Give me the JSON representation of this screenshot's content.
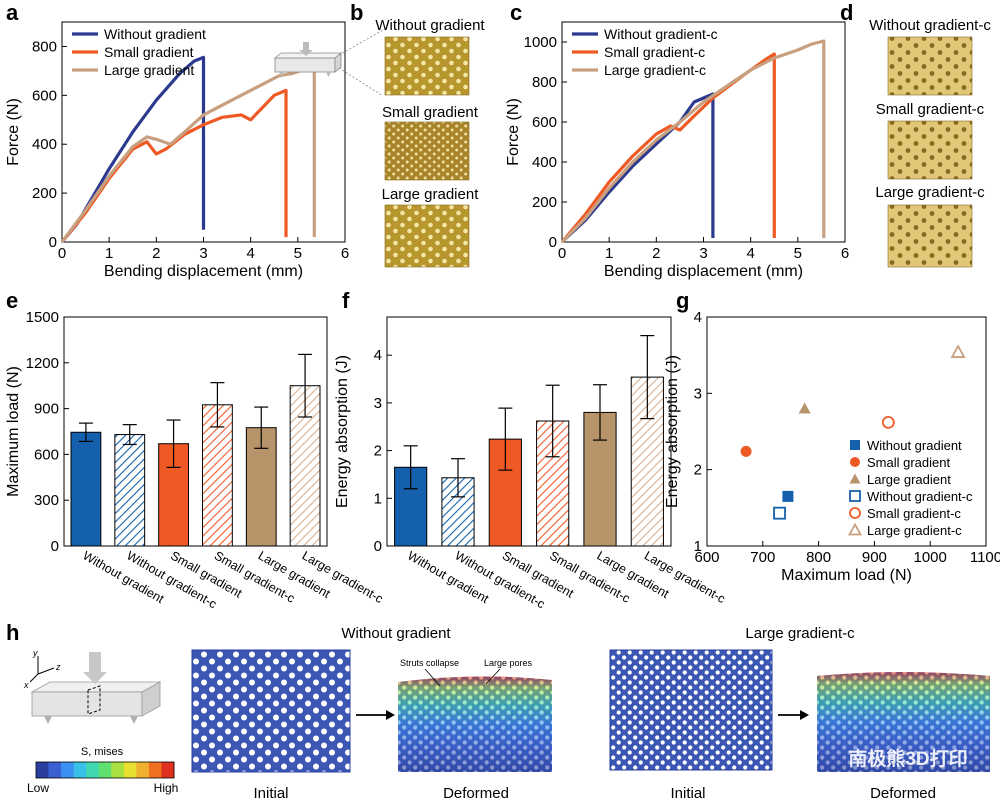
{
  "colors": {
    "blue": "#2b3a8f",
    "red": "#ef5a24",
    "tan": "#c9a07f",
    "bar_blue": "#1560ad",
    "bar_red": "#ef5a24",
    "bar_brown": "#b8946a",
    "bar_tan": "#e8c8a8",
    "mesh_blue": "#3b57b3"
  },
  "panel_letters": {
    "a": "a",
    "b": "b",
    "c": "c",
    "d": "d",
    "e": "e",
    "f": "f",
    "g": "g",
    "h": "h"
  },
  "watermark": "南极熊3D打印",
  "chart_data": [
    {
      "id": "a",
      "type": "line",
      "xlabel": "Bending displacement (mm)",
      "ylabel": "Force (N)",
      "xlim": [
        0,
        6
      ],
      "ylim": [
        0,
        900
      ],
      "xticks": [
        0,
        1,
        2,
        3,
        4,
        5,
        6
      ],
      "yticks": [
        0,
        200,
        400,
        600,
        800
      ],
      "legend_position": "top-left",
      "series": [
        {
          "name": "Without gradient",
          "color": "#2b3a8f",
          "x": [
            0,
            0.3,
            0.7,
            1.0,
            1.5,
            2.0,
            2.5,
            2.8,
            3.0,
            3.0
          ],
          "y": [
            0,
            70,
            200,
            300,
            450,
            580,
            690,
            740,
            755,
            50
          ]
        },
        {
          "name": "Small gradient",
          "color": "#ef5a24",
          "x": [
            0,
            0.5,
            1.0,
            1.5,
            1.8,
            2.0,
            2.2,
            2.6,
            3.0,
            3.4,
            3.8,
            4.0,
            4.3,
            4.5,
            4.75,
            4.75
          ],
          "y": [
            0,
            120,
            260,
            380,
            410,
            360,
            380,
            440,
            480,
            510,
            520,
            500,
            560,
            600,
            620,
            20
          ]
        },
        {
          "name": "Large gradient",
          "color": "#c9a07f",
          "x": [
            0,
            0.5,
            1.0,
            1.5,
            1.8,
            2.0,
            2.3,
            2.6,
            3.0,
            3.4,
            3.8,
            4.2,
            4.6,
            4.9,
            5.2,
            5.35,
            5.35
          ],
          "y": [
            0,
            130,
            270,
            390,
            430,
            420,
            400,
            450,
            520,
            560,
            600,
            640,
            680,
            690,
            710,
            740,
            20
          ]
        }
      ]
    },
    {
      "id": "b",
      "type": "image-set",
      "labels": [
        "Without gradient",
        "Small gradient",
        "Large gradient"
      ]
    },
    {
      "id": "c",
      "type": "line",
      "xlabel": "Bending displacement (mm)",
      "ylabel": "Force (N)",
      "xlim": [
        0,
        6
      ],
      "ylim": [
        0,
        1100
      ],
      "xticks": [
        0,
        1,
        2,
        3,
        4,
        5,
        6
      ],
      "yticks": [
        0,
        200,
        400,
        600,
        800,
        1000
      ],
      "legend_position": "top-left",
      "series": [
        {
          "name": "Without gradient-c",
          "color": "#2b3a8f",
          "x": [
            0,
            0.5,
            1.0,
            1.5,
            2.0,
            2.5,
            2.8,
            3.0,
            3.15,
            3.2,
            3.2
          ],
          "y": [
            0,
            110,
            250,
            380,
            490,
            600,
            700,
            720,
            735,
            740,
            20
          ]
        },
        {
          "name": "Small gradient-c",
          "color": "#ef5a24",
          "x": [
            0,
            0.5,
            1.0,
            1.5,
            2.0,
            2.3,
            2.5,
            2.8,
            3.2,
            3.6,
            4.0,
            4.3,
            4.5,
            4.5
          ],
          "y": [
            0,
            140,
            300,
            430,
            540,
            580,
            560,
            630,
            720,
            790,
            860,
            910,
            940,
            20
          ]
        },
        {
          "name": "Large gradient-c",
          "color": "#c9a07f",
          "x": [
            0,
            0.5,
            1.0,
            1.5,
            2.0,
            2.5,
            3.0,
            3.5,
            4.0,
            4.5,
            5.0,
            5.3,
            5.55,
            5.55
          ],
          "y": [
            0,
            120,
            270,
            400,
            510,
            600,
            700,
            780,
            860,
            920,
            960,
            990,
            1005,
            20
          ]
        }
      ]
    },
    {
      "id": "d",
      "type": "image-set",
      "labels": [
        "Without gradient-c",
        "Small gradient-c",
        "Large gradient-c"
      ]
    },
    {
      "id": "e",
      "type": "bar",
      "ylabel": "Maximum load (N)",
      "ylim": [
        0,
        1500
      ],
      "yticks": [
        0,
        300,
        600,
        900,
        1200,
        1500
      ],
      "categories": [
        "Without gradient",
        "Without gradient-c",
        "Small gradient",
        "Small gradient-c",
        "Large gradient",
        "Large gradient-c"
      ],
      "values": [
        745,
        730,
        670,
        925,
        775,
        1050
      ],
      "errors": [
        60,
        65,
        155,
        145,
        135,
        205
      ]
    },
    {
      "id": "f",
      "type": "bar",
      "ylabel": "Energy absorption (J)",
      "ylim": [
        0,
        4.8
      ],
      "yticks": [
        0,
        1,
        2,
        3,
        4
      ],
      "categories": [
        "Without gradient",
        "Without gradient-c",
        "Small gradient",
        "Small gradient-c",
        "Large gradient",
        "Large gradient-c"
      ],
      "values": [
        1.65,
        1.43,
        2.24,
        2.62,
        2.8,
        3.54
      ],
      "errors": [
        0.45,
        0.4,
        0.65,
        0.75,
        0.58,
        0.87
      ]
    },
    {
      "id": "g",
      "type": "scatter",
      "xlabel": "Maximum load (N)",
      "ylabel": "Energy absorption (J)",
      "xlim": [
        600,
        1100
      ],
      "ylim": [
        1,
        4
      ],
      "xticks": [
        600,
        700,
        800,
        900,
        1000,
        1100
      ],
      "yticks": [
        1,
        2,
        3,
        4
      ],
      "legend_position": "center-right",
      "series": [
        {
          "name": "Without gradient",
          "marker": "square",
          "filled": true,
          "color": "#1560ad",
          "x": 745,
          "y": 1.65
        },
        {
          "name": "Small gradient",
          "marker": "circle",
          "filled": true,
          "color": "#ef5a24",
          "x": 670,
          "y": 2.24
        },
        {
          "name": "Large gradient",
          "marker": "triangle",
          "filled": true,
          "color": "#b8946a",
          "x": 775,
          "y": 2.8
        },
        {
          "name": "Without gradient-c",
          "marker": "square",
          "filled": false,
          "color": "#1560ad",
          "x": 730,
          "y": 1.43
        },
        {
          "name": "Small gradient-c",
          "marker": "circle",
          "filled": false,
          "color": "#ef5a24",
          "x": 925,
          "y": 2.62
        },
        {
          "name": "Large gradient-c",
          "marker": "triangle",
          "filled": false,
          "color": "#c9a07f",
          "x": 1050,
          "y": 3.54
        }
      ]
    },
    {
      "id": "h",
      "type": "image-set",
      "labels": {
        "axis_y": "y",
        "axis_z": "z",
        "axis_x": "x",
        "legend_title": "S, mises",
        "legend_low": "Low",
        "legend_high": "High",
        "group1": "Without gradient",
        "group2": "Large gradient-c",
        "initial": "Initial",
        "deformed": "Deformed",
        "struts": "Struts collapse",
        "pores": "Large pores"
      },
      "stress_scale": [
        "#2a3ea0",
        "#3a5fd0",
        "#3a8ff0",
        "#39c0e8",
        "#40d8b0",
        "#60e070",
        "#a8e040",
        "#e8e030",
        "#f0b030",
        "#f07020",
        "#e03020"
      ]
    }
  ]
}
